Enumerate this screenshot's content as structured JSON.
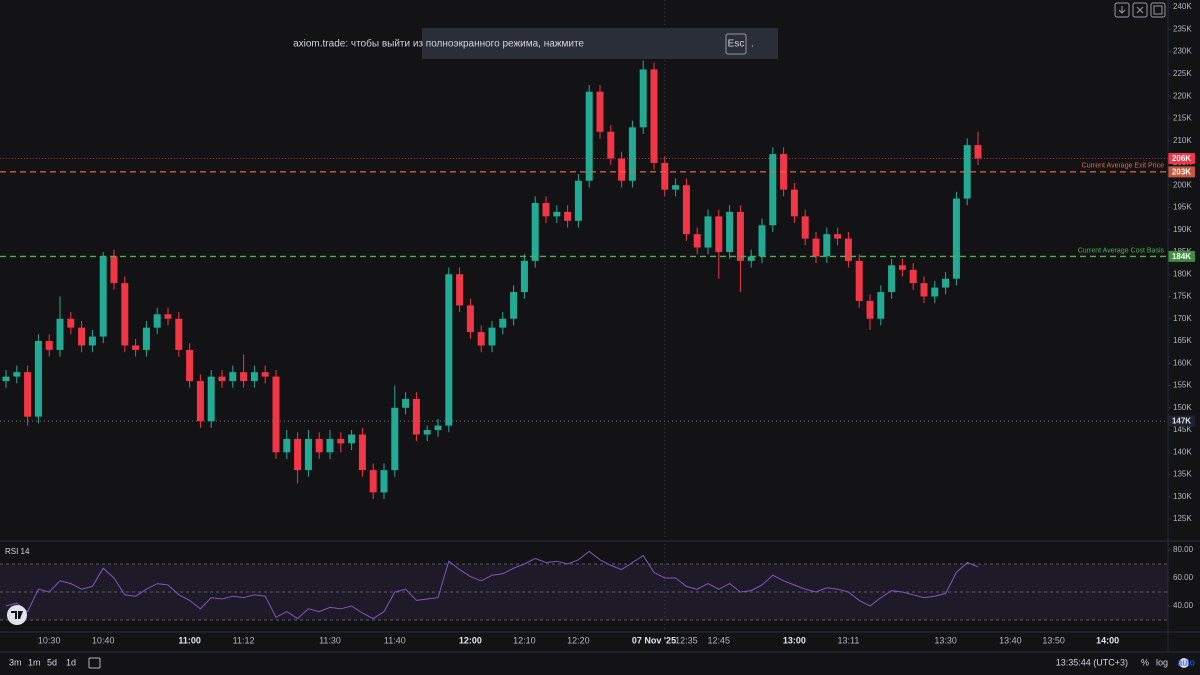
{
  "toast": {
    "text": "axiom.trade: чтобы выйти из полноэкранного режима, нажмите",
    "key": "Esc",
    "end": "."
  },
  "chart_data": [
    {
      "type": "candlestick",
      "categories": [
        null,
        null,
        null,
        null,
        "10:30",
        null,
        null,
        null,
        null,
        "10:40",
        null,
        null,
        null,
        null,
        null,
        null,
        null,
        "11:00",
        null,
        null,
        null,
        null,
        "11:12",
        null,
        null,
        null,
        null,
        null,
        null,
        null,
        "11:30",
        null,
        null,
        null,
        null,
        null,
        "11:40",
        null,
        null,
        null,
        null,
        null,
        null,
        "12:00",
        null,
        null,
        null,
        null,
        "12:10",
        null,
        null,
        null,
        null,
        "12:20",
        null,
        null,
        null,
        null,
        null,
        null,
        "07 Nov '25",
        null,
        null,
        "12:35",
        null,
        null,
        "12:45",
        null,
        null,
        null,
        null,
        null,
        null,
        "13:00",
        null,
        null,
        null,
        null,
        "13:11",
        null,
        null,
        null,
        null,
        null,
        null,
        null,
        null,
        "13:30",
        null,
        null,
        null,
        null,
        null,
        "13:40",
        null,
        null,
        null,
        "13:50",
        null,
        null,
        null,
        null,
        "14:00"
      ],
      "open": [
        156000,
        157000,
        158000,
        148000,
        165000,
        163000,
        170000,
        168000,
        164000,
        166000,
        184000,
        178000,
        164000,
        163000,
        168000,
        171000,
        170000,
        163000,
        156000,
        147000,
        157000,
        156000,
        158000,
        156000,
        158000,
        157000,
        140000,
        143000,
        136000,
        143000,
        140000,
        143000,
        142000,
        144000,
        136000,
        131000,
        136000,
        150000,
        152000,
        144000,
        145000,
        146000,
        180000,
        173000,
        167000,
        164000,
        168000,
        170000,
        176000,
        183000,
        196000,
        193000,
        194000,
        192000,
        201000,
        221000,
        212000,
        206000,
        201000,
        213000,
        226000,
        205000,
        199000,
        200000,
        189000,
        186000,
        193000,
        185000,
        194000,
        183000,
        184000,
        191000,
        207000,
        199000,
        193000,
        188000,
        184000,
        189000,
        188000,
        183000,
        174000,
        170000,
        176000,
        182000,
        181000,
        178000,
        175000,
        177000,
        179000,
        197000,
        209000,
        null,
        null,
        null,
        null,
        null,
        null,
        null,
        null,
        null,
        null,
        null,
        null
      ],
      "high": [
        158500,
        159500,
        159500,
        166500,
        166500,
        175000,
        171500,
        169500,
        167500,
        185000,
        185500,
        179500,
        165500,
        169500,
        172500,
        172500,
        171500,
        164500,
        157500,
        158500,
        158500,
        159500,
        162000,
        159500,
        159500,
        158500,
        145000,
        144500,
        145000,
        144500,
        145000,
        144500,
        145000,
        145500,
        137500,
        137500,
        155000,
        153500,
        153500,
        146000,
        147500,
        181500,
        181500,
        174500,
        168500,
        169500,
        171500,
        177500,
        184500,
        197500,
        197500,
        195500,
        195500,
        202500,
        222500,
        222500,
        213500,
        207500,
        214500,
        228000,
        227500,
        206500,
        201500,
        201500,
        190500,
        194500,
        194500,
        195500,
        195500,
        185500,
        192500,
        208500,
        208500,
        200500,
        194500,
        189500,
        190500,
        190500,
        189500,
        184500,
        175500,
        177500,
        183500,
        183500,
        182500,
        179500,
        178500,
        180500,
        198500,
        210500,
        212000,
        null,
        null,
        null,
        null,
        null,
        null,
        null,
        null,
        null,
        null,
        null,
        null
      ],
      "low": [
        154500,
        155500,
        146000,
        146500,
        161500,
        161500,
        166500,
        162500,
        162500,
        164500,
        176500,
        162500,
        161500,
        161500,
        166500,
        168500,
        161500,
        154500,
        145500,
        145500,
        154500,
        154500,
        154500,
        154500,
        155500,
        138500,
        138500,
        133000,
        134500,
        138500,
        138500,
        140000,
        140500,
        134500,
        129500,
        129500,
        134500,
        148500,
        142500,
        142500,
        143500,
        144500,
        171500,
        165500,
        162500,
        162500,
        166500,
        168500,
        174500,
        181500,
        191500,
        191500,
        190500,
        190500,
        199500,
        210500,
        204500,
        199500,
        199500,
        211500,
        203500,
        197500,
        197500,
        187500,
        184500,
        184500,
        179000,
        183500,
        176000,
        181500,
        182500,
        189500,
        197500,
        191500,
        186500,
        182500,
        182500,
        186500,
        181500,
        172500,
        167500,
        168500,
        174500,
        179500,
        176500,
        173500,
        173500,
        175500,
        177500,
        195500,
        204500,
        null,
        null,
        null,
        null,
        null,
        null,
        null,
        null,
        null,
        null,
        null,
        null
      ],
      "close": [
        157000,
        158000,
        148000,
        165000,
        163000,
        170000,
        168000,
        164000,
        166000,
        184000,
        178000,
        164000,
        163000,
        168000,
        171000,
        170000,
        163000,
        156000,
        147000,
        157000,
        156000,
        158000,
        156000,
        158000,
        157000,
        140000,
        143000,
        136000,
        143000,
        140000,
        143000,
        142000,
        144000,
        136000,
        131000,
        136000,
        150000,
        152000,
        144000,
        145000,
        146000,
        180000,
        173000,
        167000,
        164000,
        168000,
        170000,
        176000,
        183000,
        196000,
        193000,
        194000,
        192000,
        201000,
        221000,
        212000,
        206000,
        201000,
        213000,
        226000,
        205000,
        199000,
        200000,
        189000,
        186000,
        193000,
        185000,
        194000,
        183000,
        184000,
        191000,
        207000,
        199000,
        193000,
        188000,
        184000,
        189000,
        188000,
        183000,
        174000,
        170000,
        176000,
        182000,
        181000,
        178000,
        175000,
        177000,
        179000,
        197000,
        209000,
        206000,
        null,
        null,
        null,
        null,
        null,
        null,
        null,
        null,
        null,
        null,
        null,
        null
      ],
      "up_color": "#22ab94",
      "down_color": "#f23645",
      "ylim": [
        120300,
        241600
      ],
      "yticks": [
        {
          "value": 240000,
          "label": "240K"
        },
        {
          "value": 235000,
          "label": "235K"
        },
        {
          "value": 230000,
          "label": "230K"
        },
        {
          "value": 225000,
          "label": "225K"
        },
        {
          "value": 220000,
          "label": "220K"
        },
        {
          "value": 215000,
          "label": "215K"
        },
        {
          "value": 210000,
          "label": "210K"
        },
        {
          "value": 205000,
          "label": "205K"
        },
        {
          "value": 200000,
          "label": "200K"
        },
        {
          "value": 195000,
          "label": "195K"
        },
        {
          "value": 190000,
          "label": "190K"
        },
        {
          "value": 185000,
          "label": "185K"
        },
        {
          "value": 180000,
          "label": "180K"
        },
        {
          "value": 175000,
          "label": "175K"
        },
        {
          "value": 170000,
          "label": "170K"
        },
        {
          "value": 165000,
          "label": "165K"
        },
        {
          "value": 160000,
          "label": "160K"
        },
        {
          "value": 155000,
          "label": "155K"
        },
        {
          "value": 150000,
          "label": "150K"
        },
        {
          "value": 145000,
          "label": "145K"
        },
        {
          "value": 140000,
          "label": "140K"
        },
        {
          "value": 135000,
          "label": "135K"
        },
        {
          "value": 130000,
          "label": "130K"
        },
        {
          "value": 125000,
          "label": "125K"
        }
      ],
      "last_price": {
        "value": 206000,
        "label": "206K",
        "color": "#f23645"
      },
      "price_lines": [
        {
          "name": "Current Average Exit Price",
          "value": 203000,
          "label": "203K",
          "color": "#e0673f"
        },
        {
          "name": "Current Average Cost Basis",
          "value": 184000,
          "label": "184K",
          "color": "#4caf50"
        }
      ],
      "crosshair": {
        "value": 147000,
        "label": "147K"
      }
    },
    {
      "type": "line",
      "title": "RSI 14",
      "values": [
        40,
        42,
        36,
        52,
        50,
        58,
        56,
        52,
        54,
        67,
        60,
        48,
        47,
        52,
        56,
        55,
        48,
        44,
        38,
        46,
        45,
        47,
        46,
        48,
        47,
        32,
        36,
        31,
        38,
        36,
        39,
        38,
        40,
        35,
        31,
        36,
        50,
        52,
        44,
        45,
        46,
        72,
        66,
        61,
        58,
        62,
        63,
        67,
        70,
        74,
        71,
        72,
        70,
        73,
        79,
        73,
        69,
        66,
        71,
        76,
        64,
        60,
        60,
        54,
        52,
        56,
        52,
        56,
        50,
        51,
        55,
        62,
        58,
        55,
        52,
        50,
        53,
        52,
        50,
        44,
        40,
        46,
        51,
        50,
        48,
        46,
        47,
        49,
        64,
        71,
        68,
        null,
        null,
        null,
        null,
        null,
        null,
        null,
        null,
        null,
        null,
        null,
        null
      ],
      "color": "#7e57c2",
      "ylim": [
        21.4,
        85.7
      ],
      "yticks": [
        {
          "value": 80,
          "label": "80.00"
        },
        {
          "value": 60,
          "label": "60.00"
        },
        {
          "value": 40,
          "label": "40.00"
        }
      ],
      "bands": [
        70,
        50,
        30
      ]
    }
  ],
  "toolbar": {
    "intervals": [
      "3m",
      "1m",
      "5d",
      "1d"
    ],
    "clock": "13:35:44 (UTC+3)",
    "options": [
      "%",
      "log",
      "auto"
    ]
  }
}
